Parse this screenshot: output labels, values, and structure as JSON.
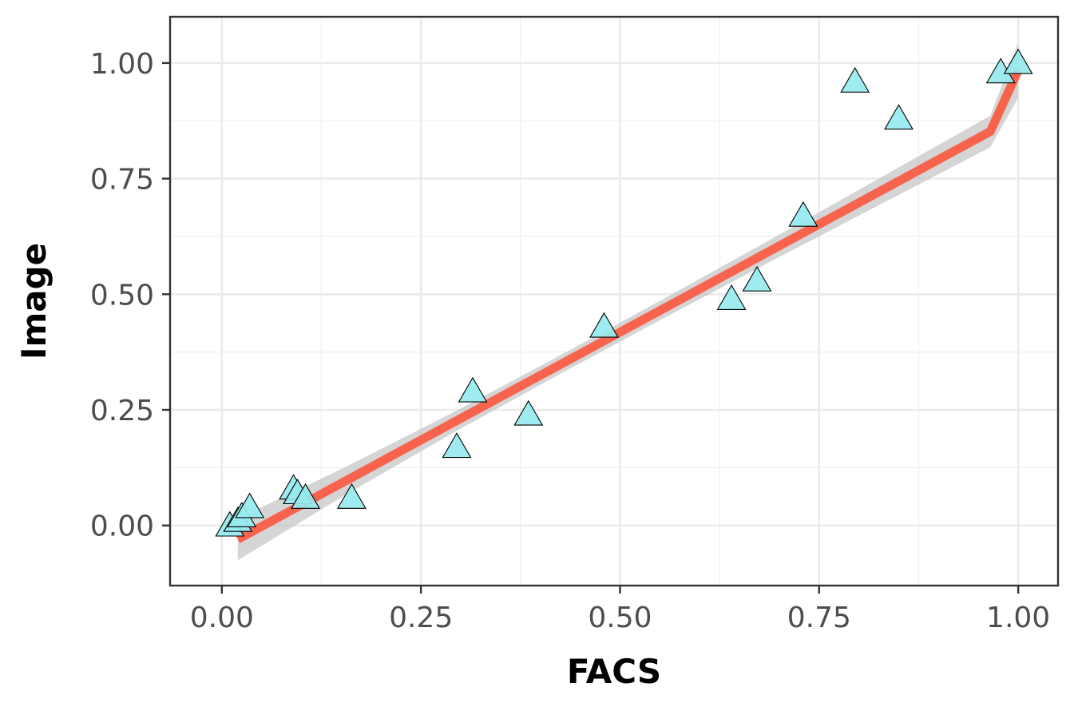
{
  "chart_data": {
    "type": "scatter",
    "title": "",
    "xlabel": "FACS",
    "ylabel": "Image",
    "xlim": [
      -0.065,
      1.05
    ],
    "ylim": [
      -0.13,
      1.1
    ],
    "x_ticks": [
      0.0,
      0.25,
      0.5,
      0.75,
      1.0
    ],
    "x_tick_labels": [
      "0.00",
      "0.25",
      "0.50",
      "0.75",
      "1.00"
    ],
    "y_ticks": [
      0.0,
      0.25,
      0.5,
      0.75,
      1.0
    ],
    "y_tick_labels": [
      "0.00",
      "0.25",
      "0.50",
      "0.75",
      "1.00"
    ],
    "x_minor_ticks": [
      0.125,
      0.375,
      0.625,
      0.875
    ],
    "y_minor_ticks": [
      0.125,
      0.375,
      0.625,
      0.875
    ],
    "grid": true,
    "legend": "none",
    "series": [
      {
        "marker": "triangle",
        "color": "#96eaee",
        "points": [
          {
            "x": 0.01,
            "y": 0.0
          },
          {
            "x": 0.02,
            "y": 0.01
          },
          {
            "x": 0.025,
            "y": 0.02
          },
          {
            "x": 0.035,
            "y": 0.04
          },
          {
            "x": 0.09,
            "y": 0.08
          },
          {
            "x": 0.095,
            "y": 0.07
          },
          {
            "x": 0.105,
            "y": 0.06
          },
          {
            "x": 0.163,
            "y": 0.06
          },
          {
            "x": 0.295,
            "y": 0.17
          },
          {
            "x": 0.315,
            "y": 0.29
          },
          {
            "x": 0.385,
            "y": 0.24
          },
          {
            "x": 0.48,
            "y": 0.43
          },
          {
            "x": 0.64,
            "y": 0.49
          },
          {
            "x": 0.672,
            "y": 0.53
          },
          {
            "x": 0.73,
            "y": 0.67
          },
          {
            "x": 0.795,
            "y": 0.96
          },
          {
            "x": 0.85,
            "y": 0.88
          },
          {
            "x": 0.978,
            "y": 0.98
          },
          {
            "x": 1.0,
            "y": 1.0
          }
        ]
      }
    ],
    "fit_line": {
      "color": "#f8634d",
      "band_color": "#bfbfbf",
      "x": [
        0.02,
        0.155,
        0.29,
        0.425,
        0.56,
        0.695,
        0.83,
        0.965,
        1.0
      ],
      "y": [
        -0.03,
        0.096,
        0.222,
        0.348,
        0.474,
        0.6,
        0.726,
        0.852,
        0.984
      ],
      "band_lower": [
        -0.075,
        0.066,
        0.2,
        0.328,
        0.453,
        0.576,
        0.697,
        0.818,
        0.925
      ],
      "band_upper": [
        0.015,
        0.126,
        0.244,
        0.368,
        0.495,
        0.624,
        0.755,
        0.886,
        1.044
      ]
    }
  }
}
